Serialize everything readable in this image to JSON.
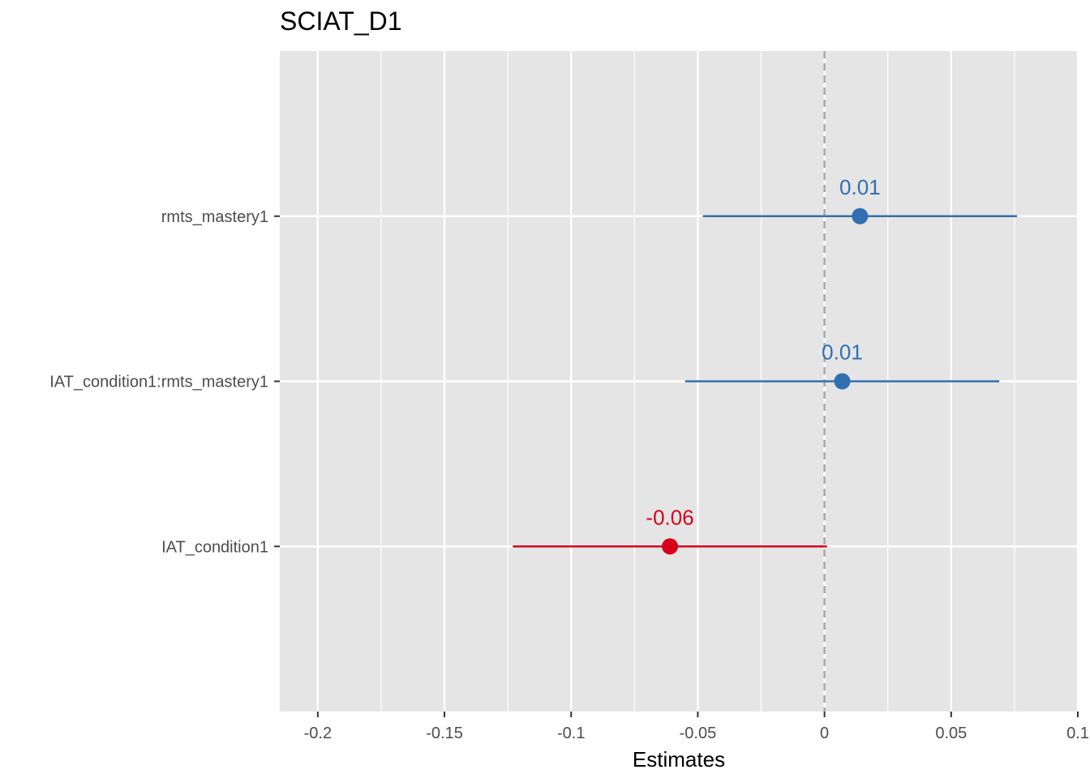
{
  "chart_data": {
    "type": "scatter",
    "title": "SCIAT_D1",
    "xlabel": "Estimates",
    "ylabel": "",
    "xlim": [
      -0.215,
      0.1
    ],
    "x_ticks": [
      -0.2,
      -0.15,
      -0.1,
      -0.05,
      0,
      0.05,
      0.1
    ],
    "x_tick_labels": [
      "-0.2",
      "-0.15",
      "-0.1",
      "-0.05",
      "0",
      "0.05",
      "0.1"
    ],
    "reference_line": 0,
    "grid": true,
    "colors": {
      "positive": "#3070b0",
      "negative": "#d6001c",
      "panel": "#e5e5e5",
      "reference": "#a6a6a6"
    },
    "terms": [
      {
        "label": "rmts_mastery1",
        "estimate": 0.014,
        "ci_low": -0.048,
        "ci_high": 0.076,
        "value_label": "0.01",
        "sign": "positive"
      },
      {
        "label": "IAT_condition1:rmts_mastery1",
        "estimate": 0.007,
        "ci_low": -0.055,
        "ci_high": 0.069,
        "value_label": "0.01",
        "sign": "positive"
      },
      {
        "label": "IAT_condition1",
        "estimate": -0.061,
        "ci_low": -0.123,
        "ci_high": 0.001,
        "value_label": "-0.06",
        "sign": "negative"
      }
    ]
  }
}
